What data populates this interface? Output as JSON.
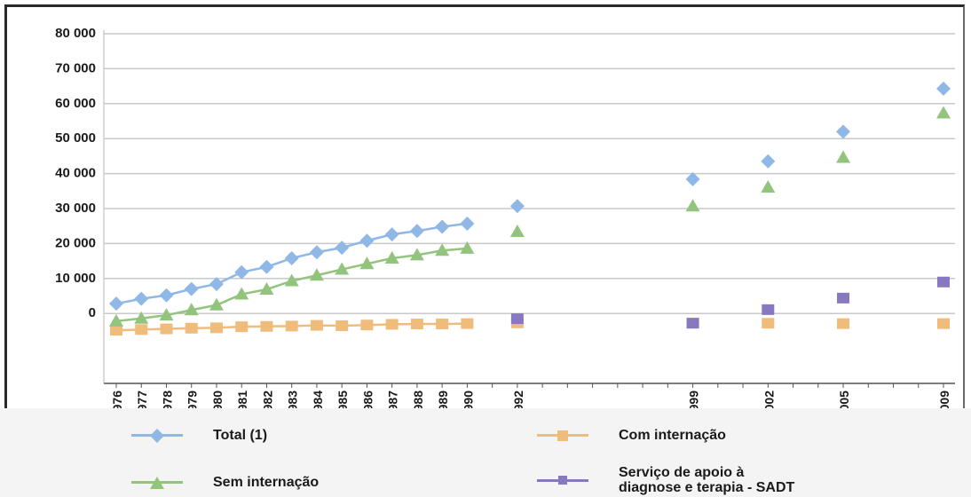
{
  "chart_data": {
    "type": "scatter",
    "xlabel": "",
    "ylabel": "",
    "title": "",
    "ylim": [
      -20000,
      80000
    ],
    "yticks": [
      0,
      10000,
      20000,
      30000,
      40000,
      50000,
      60000,
      70000,
      80000
    ],
    "ytick_labels": [
      "0",
      "10 000",
      "20 000",
      "30 000",
      "40 000",
      "50 000",
      "60 000",
      "70 000",
      "80 000"
    ],
    "grid": "horizontal",
    "x": [
      "1976",
      "1977",
      "1978",
      "1979",
      "1980",
      "1981",
      "1982",
      "1983",
      "1984",
      "1985",
      "1986",
      "1987",
      "1988",
      "1989",
      "1990",
      "1992",
      "1999",
      "2002",
      "2005",
      "2009"
    ],
    "series": [
      {
        "name": "Total (1)",
        "color": "#8fb8e6",
        "marker": "diamond",
        "values": [
          2800,
          4200,
          5200,
          7000,
          8400,
          11800,
          13300,
          15800,
          17500,
          18800,
          20800,
          22600,
          23600,
          24800,
          25700,
          30700,
          38400,
          43500,
          52000,
          64300
        ]
      },
      {
        "name": "Com internação",
        "color": "#f0bc7c",
        "marker": "square",
        "values": [
          -4800,
          -4600,
          -4400,
          -4200,
          -4100,
          -3800,
          -3700,
          -3600,
          -3400,
          -3500,
          -3300,
          -3100,
          -3000,
          -3000,
          -2900,
          -2700,
          -2700,
          -2800,
          -2900,
          -2900
        ]
      },
      {
        "name": "Sem internação",
        "color": "#93c47d",
        "marker": "triangle",
        "values": [
          -2200,
          -1400,
          -500,
          1000,
          2400,
          5500,
          6900,
          9300,
          10900,
          12600,
          14200,
          15800,
          16700,
          18000,
          18600,
          23400,
          30700,
          36100,
          44600,
          57300
        ]
      },
      {
        "name": "Serviço de apoio à\ndiagnose e terapia - SADT",
        "color": "#8878c0",
        "marker": "square",
        "values": [
          null,
          null,
          null,
          null,
          null,
          null,
          null,
          null,
          null,
          null,
          null,
          null,
          null,
          null,
          null,
          -1500,
          -2800,
          1100,
          4400,
          9000
        ]
      }
    ]
  },
  "legend": {
    "total": "Total (1)",
    "sem": "Sem internação",
    "com": "Com internação",
    "sadt": "Serviço de apoio à\ndiagnose e terapia - SADT"
  }
}
